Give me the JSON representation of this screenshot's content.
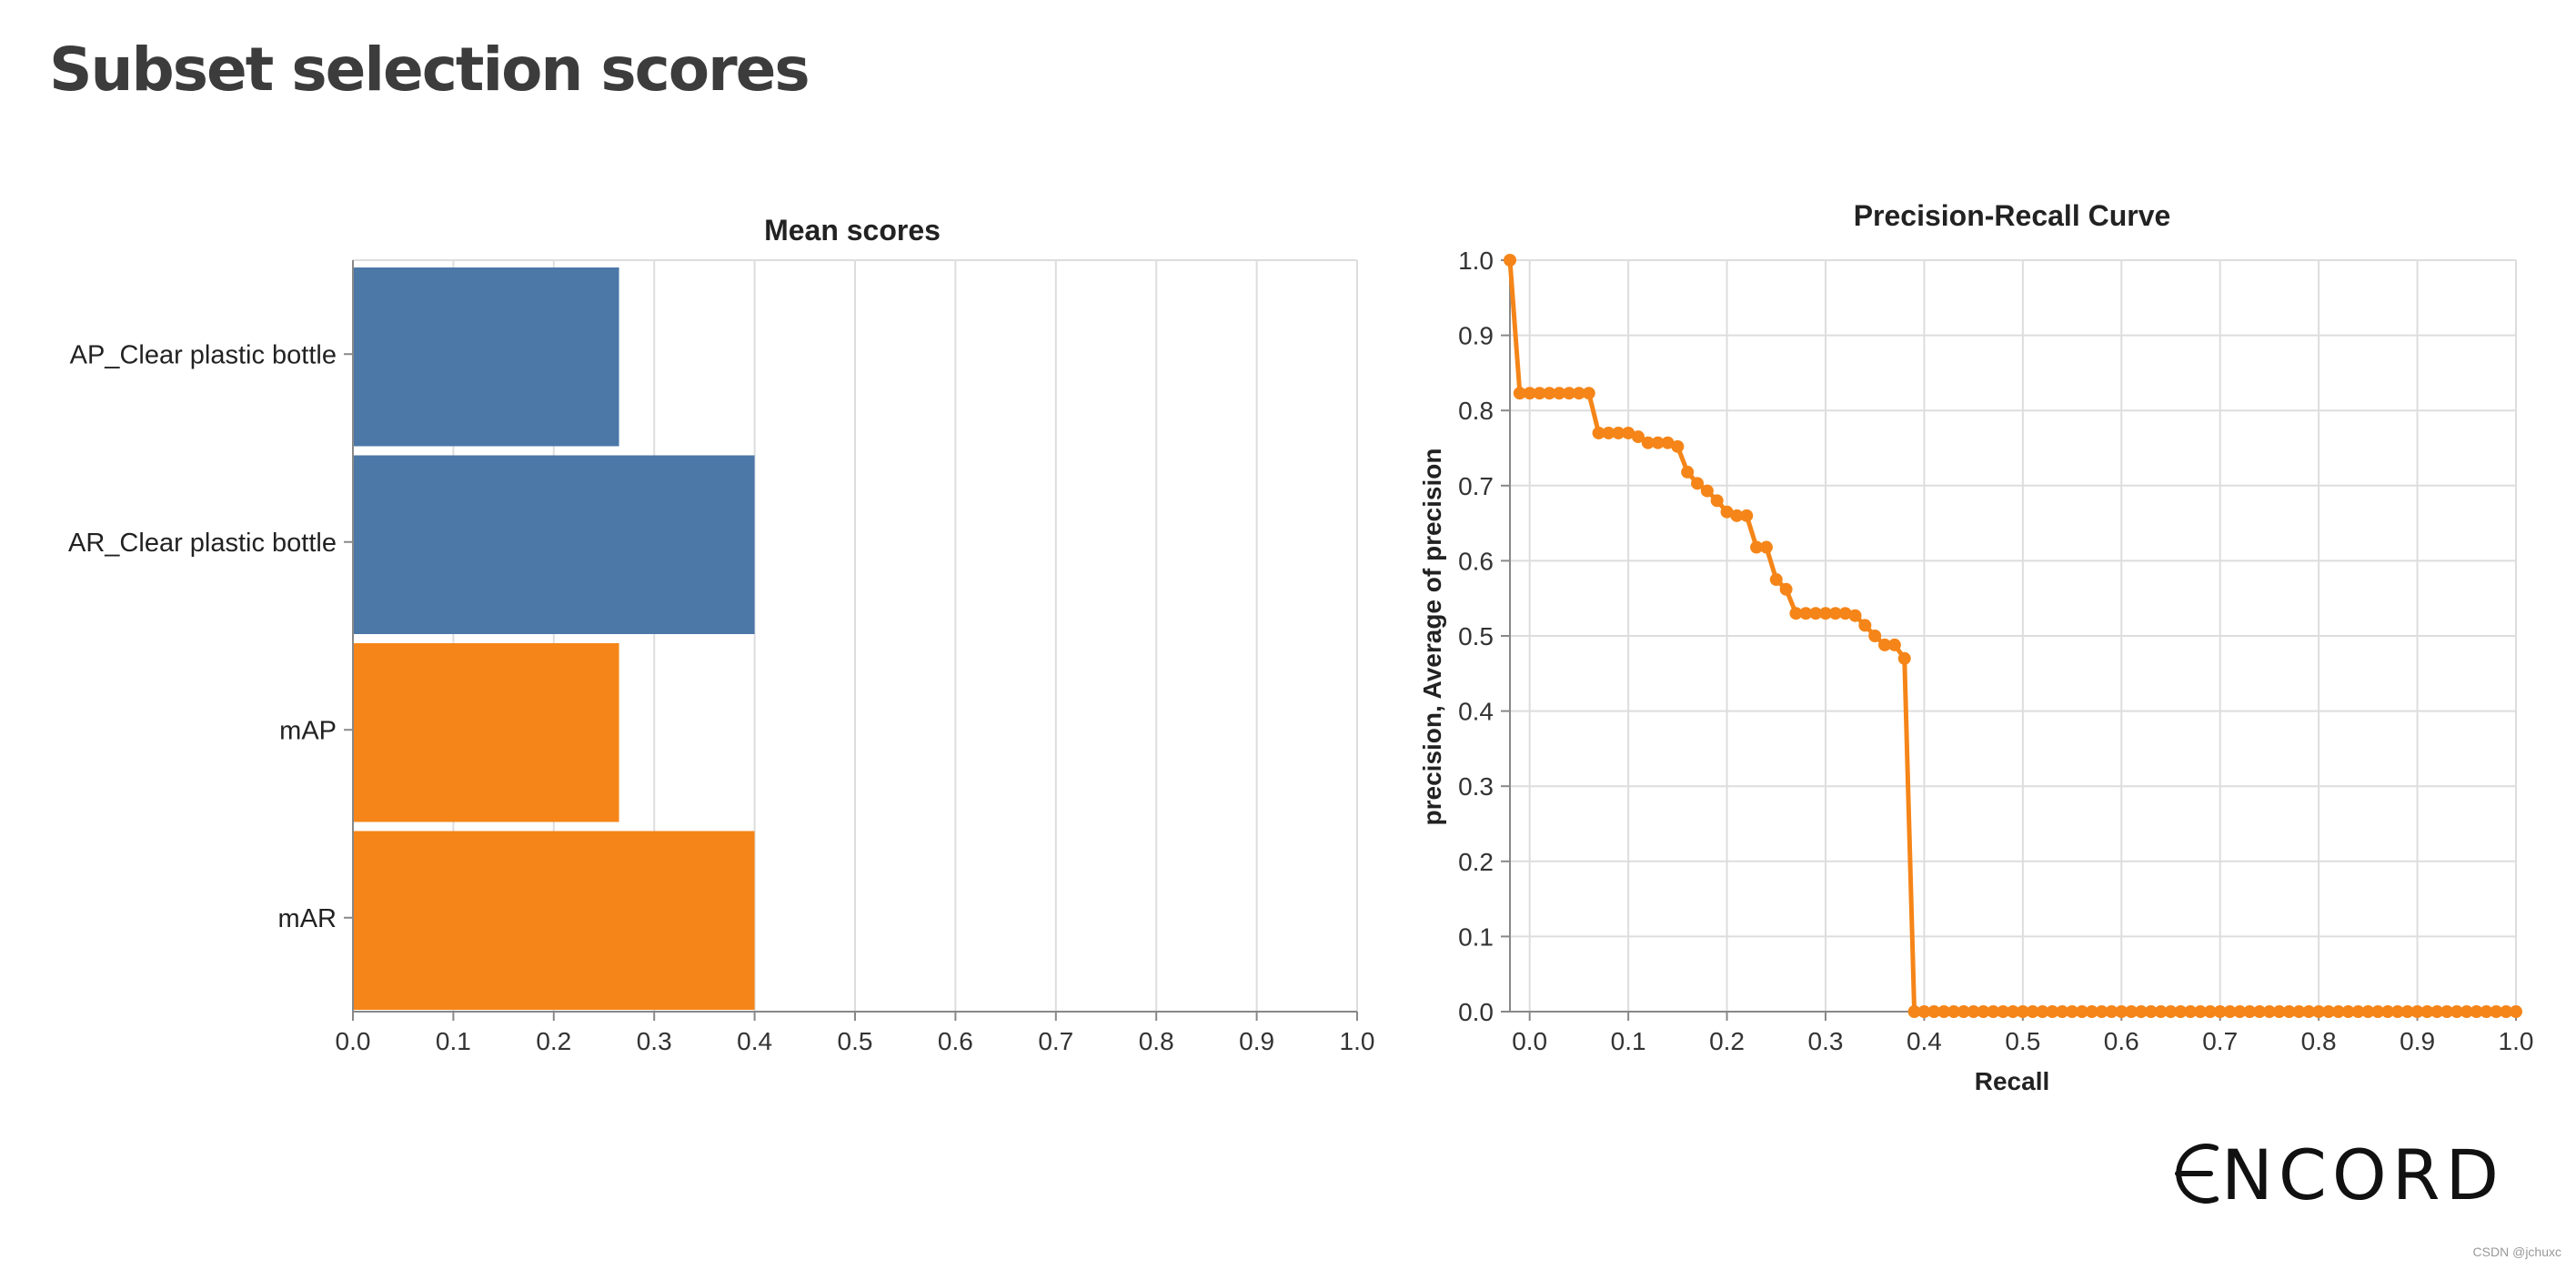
{
  "page": {
    "heading": "Subset selection scores",
    "brand_logo": "ENCORD",
    "watermark": "CSDN @jchuxc"
  },
  "chart_data": [
    {
      "type": "bar",
      "orientation": "horizontal",
      "title": "Mean scores",
      "xlabel": "",
      "ylabel": "",
      "xlim": [
        0,
        1.0
      ],
      "xticks": [
        "0.0",
        "0.1",
        "0.2",
        "0.3",
        "0.4",
        "0.5",
        "0.6",
        "0.7",
        "0.8",
        "0.9",
        "1.0"
      ],
      "grid": true,
      "categories": [
        "AP_Clear plastic bottle",
        "AR_Clear plastic bottle",
        "mAP",
        "mAR"
      ],
      "values": [
        0.265,
        0.4,
        0.265,
        0.4
      ],
      "colors": [
        "#4c78a8",
        "#4c78a8",
        "#f58518",
        "#f58518"
      ]
    },
    {
      "type": "line",
      "title": "Precision-Recall Curve",
      "xlabel": "Recall",
      "ylabel": "precision, Average of precision",
      "xlim": [
        -0.02,
        1.0
      ],
      "ylim": [
        0,
        1.0
      ],
      "xticks": [
        "0.0",
        "0.1",
        "0.2",
        "0.3",
        "0.4",
        "0.5",
        "0.6",
        "0.7",
        "0.8",
        "0.9",
        "1.0"
      ],
      "yticks": [
        "0.0",
        "0.1",
        "0.2",
        "0.3",
        "0.4",
        "0.5",
        "0.6",
        "0.7",
        "0.8",
        "0.9",
        "1.0"
      ],
      "grid": true,
      "color": "#f58518",
      "series": [
        {
          "x": [
            -0.02,
            -0.01,
            0.0,
            0.01,
            0.02,
            0.03,
            0.04,
            0.05,
            0.06,
            0.07,
            0.08,
            0.09,
            0.1,
            0.11,
            0.12,
            0.13,
            0.14,
            0.15,
            0.16,
            0.17,
            0.18,
            0.19,
            0.2,
            0.21,
            0.22,
            0.23,
            0.24,
            0.25,
            0.26,
            0.27,
            0.28,
            0.29,
            0.3,
            0.31,
            0.32,
            0.33,
            0.34,
            0.35,
            0.36,
            0.37,
            0.38,
            0.39,
            0.4,
            0.41,
            0.42,
            0.43,
            0.44,
            0.45,
            0.46,
            0.47,
            0.48,
            0.49,
            0.5,
            0.51,
            0.52,
            0.53,
            0.54,
            0.55,
            0.56,
            0.57,
            0.58,
            0.59,
            0.6,
            0.61,
            0.62,
            0.63,
            0.64,
            0.65,
            0.66,
            0.67,
            0.68,
            0.69,
            0.7,
            0.71,
            0.72,
            0.73,
            0.74,
            0.75,
            0.76,
            0.77,
            0.78,
            0.79,
            0.8,
            0.81,
            0.82,
            0.83,
            0.84,
            0.85,
            0.86,
            0.87,
            0.88,
            0.89,
            0.9,
            0.91,
            0.92,
            0.93,
            0.94,
            0.95,
            0.96,
            0.97,
            0.98,
            0.99,
            1.0
          ],
          "y": [
            1.0,
            0.823,
            0.823,
            0.823,
            0.823,
            0.823,
            0.823,
            0.823,
            0.823,
            0.77,
            0.77,
            0.77,
            0.77,
            0.765,
            0.757,
            0.757,
            0.757,
            0.752,
            0.718,
            0.703,
            0.693,
            0.68,
            0.665,
            0.66,
            0.66,
            0.618,
            0.618,
            0.575,
            0.562,
            0.53,
            0.53,
            0.53,
            0.53,
            0.53,
            0.53,
            0.527,
            0.514,
            0.5,
            0.488,
            0.488,
            0.47,
            0.0,
            0.0,
            0.0,
            0.0,
            0.0,
            0.0,
            0.0,
            0.0,
            0.0,
            0.0,
            0.0,
            0.0,
            0.0,
            0.0,
            0.0,
            0.0,
            0.0,
            0.0,
            0.0,
            0.0,
            0.0,
            0.0,
            0.0,
            0.0,
            0.0,
            0.0,
            0.0,
            0.0,
            0.0,
            0.0,
            0.0,
            0.0,
            0.0,
            0.0,
            0.0,
            0.0,
            0.0,
            0.0,
            0.0,
            0.0,
            0.0,
            0.0,
            0.0,
            0.0,
            0.0,
            0.0,
            0.0,
            0.0,
            0.0,
            0.0,
            0.0,
            0.0,
            0.0,
            0.0,
            0.0,
            0.0,
            0.0,
            0.0,
            0.0,
            0.0,
            0.0,
            0.0
          ]
        }
      ]
    }
  ]
}
